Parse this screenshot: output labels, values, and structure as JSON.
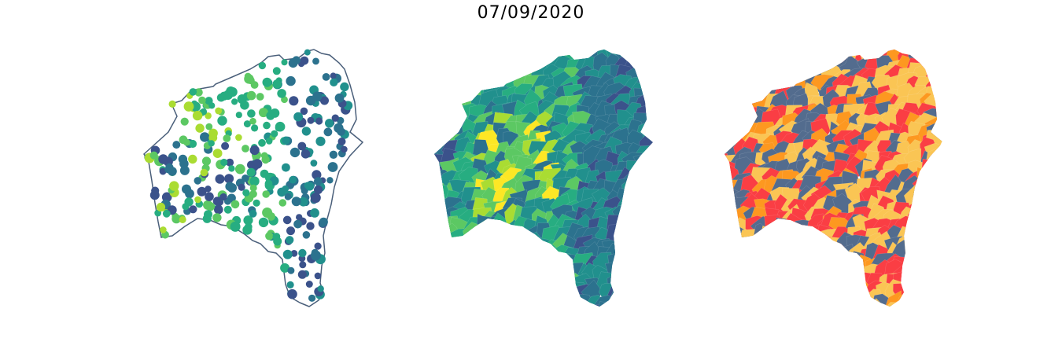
{
  "title": "07/09/2020",
  "palette": {
    "viridis": [
      "#440154",
      "#3b528b",
      "#2c728e",
      "#21908d",
      "#27ad81",
      "#5cc863",
      "#aadc32",
      "#fde725"
    ],
    "outline": "#4a5f7a",
    "risk": [
      "#fa3e44",
      "#fd9820",
      "#fac554",
      "#536c8e"
    ]
  },
  "maps": [
    {
      "name": "bubble-map",
      "style": "outline with proportional colored points"
    },
    {
      "name": "choropleth-viridis",
      "style": "municipal choropleth, continuous scale"
    },
    {
      "name": "choropleth-categorical",
      "style": "municipal choropleth, four categories"
    }
  ]
}
